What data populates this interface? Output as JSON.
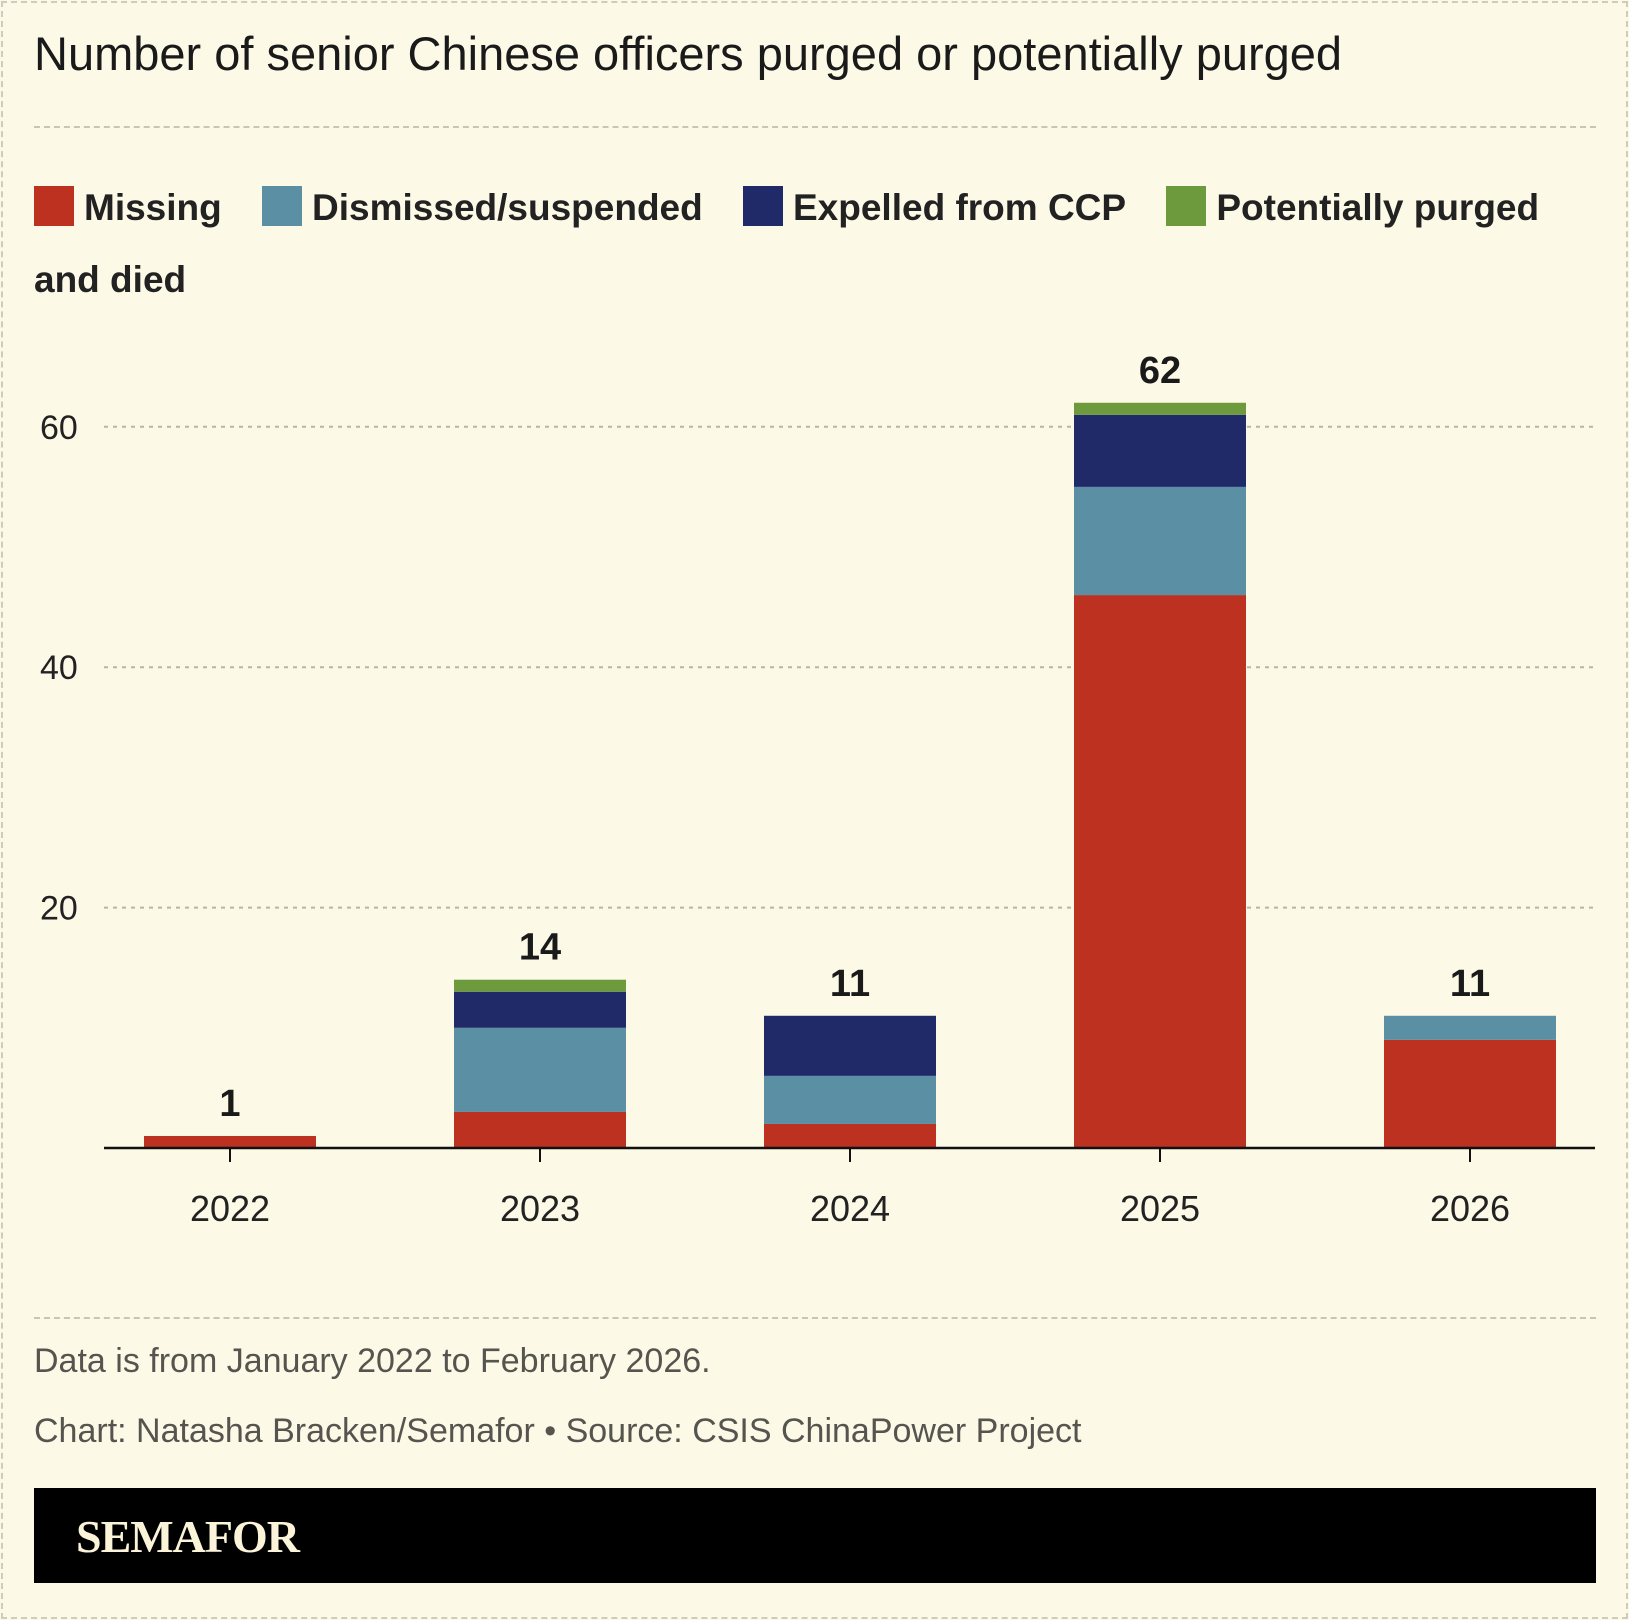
{
  "title": "Number of senior Chinese officers purged or potentially purged",
  "chart_data": {
    "type": "bar",
    "stacked": true,
    "categories": [
      "2022",
      "2023",
      "2024",
      "2025",
      "2026"
    ],
    "series": [
      {
        "name": "Missing",
        "color": "#bd3120",
        "values": [
          1,
          3,
          2,
          46,
          9
        ]
      },
      {
        "name": "Dismissed/suspended",
        "color": "#5a8fa4",
        "values": [
          0,
          7,
          4,
          9,
          2
        ]
      },
      {
        "name": "Expelled from CCP",
        "color": "#202a68",
        "values": [
          0,
          3,
          5,
          6,
          0
        ]
      },
      {
        "name": "Potentially purged and died",
        "color": "#6e9a3e",
        "values": [
          0,
          1,
          0,
          1,
          0
        ]
      }
    ],
    "totals": [
      1,
      14,
      11,
      62,
      11
    ],
    "yticks": [
      20,
      40,
      60
    ],
    "ylim": [
      0,
      62
    ],
    "grid": true,
    "legend": "top"
  },
  "footer": {
    "note": "Data is from January 2022 to February 2026.",
    "credit": "Chart: Natasha Bracken/Semafor • Source: CSIS ChinaPower Project",
    "brand": "SEMAFOR"
  }
}
